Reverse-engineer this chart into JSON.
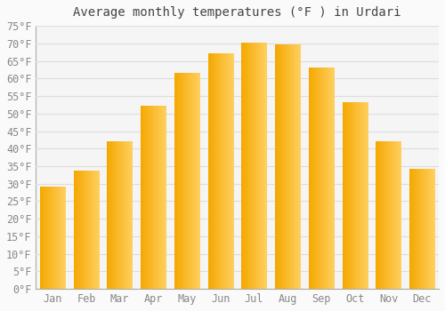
{
  "title": "Average monthly temperatures (°F ) in Urdari",
  "months": [
    "Jan",
    "Feb",
    "Mar",
    "Apr",
    "May",
    "Jun",
    "Jul",
    "Aug",
    "Sep",
    "Oct",
    "Nov",
    "Dec"
  ],
  "values": [
    29,
    33.5,
    42,
    52,
    61.5,
    67,
    70,
    69.5,
    63,
    53,
    42,
    34
  ],
  "bar_color_left": "#F5A800",
  "bar_color_right": "#FFD060",
  "background_color": "#FAFAFA",
  "plot_bg_color": "#F5F5F5",
  "grid_color": "#DDDDDD",
  "text_color": "#888888",
  "title_color": "#444444",
  "ylim": [
    0,
    75
  ],
  "yticks": [
    0,
    5,
    10,
    15,
    20,
    25,
    30,
    35,
    40,
    45,
    50,
    55,
    60,
    65,
    70,
    75
  ],
  "title_fontsize": 10,
  "tick_fontsize": 8.5,
  "bar_width": 0.75
}
